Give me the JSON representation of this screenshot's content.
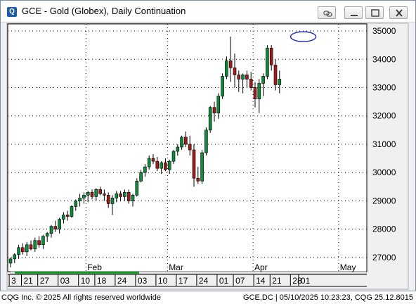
{
  "window": {
    "title": "GCE - Gold (Globex), Daily Continuation",
    "icon": "cqg-app-icon",
    "buttons": [
      "link-icon",
      "minimize-icon",
      "maximize-icon",
      "close-icon"
    ]
  },
  "footer": {
    "left": "CQG Inc. © 2025 All rights reserved worldwide",
    "right": "GCE,DC | 05/10/2025 10:23:23, CQG 25.12.8015"
  },
  "colors": {
    "up": "#0f8a3c",
    "down": "#a01c1c",
    "plot_bg": "#ffffff",
    "grid": "#000000",
    "bar_line": "#000000",
    "highlight_ellipse": "#2c34a8",
    "scroll_bar": "#1a9c2c"
  },
  "chart_data": {
    "type": "candlestick",
    "ylim": [
      26500,
      35250
    ],
    "ytick_values": [
      27000,
      28000,
      29000,
      30000,
      31000,
      32000,
      33000,
      34000,
      35000
    ],
    "ytick_labels": [
      "27000",
      "28000",
      "29000",
      "30000",
      "31000",
      "32000",
      "33000",
      "34000",
      "35000"
    ],
    "month_labels": [
      {
        "label": "Feb",
        "index": 19
      },
      {
        "label": "Mar",
        "index": 39
      },
      {
        "label": "Apr",
        "index": 60
      },
      {
        "label": "May",
        "index": 81
      }
    ],
    "date_labels": [
      {
        "label": "3",
        "index": 0
      },
      {
        "label": "21",
        "index": 3
      },
      {
        "label": "27",
        "index": 7
      },
      {
        "label": "03",
        "index": 12
      },
      {
        "label": "10",
        "index": 17
      },
      {
        "label": "18",
        "index": 21
      },
      {
        "label": "24",
        "index": 26
      },
      {
        "label": "03",
        "index": 31
      },
      {
        "label": "10",
        "index": 36
      },
      {
        "label": "17",
        "index": 41
      },
      {
        "label": "24",
        "index": 46
      },
      {
        "label": "01",
        "index": 51
      },
      {
        "label": "07",
        "index": 55
      },
      {
        "label": "14",
        "index": 60
      },
      {
        "label": "21",
        "index": 64
      },
      {
        "label": "28",
        "index": 69
      },
      {
        "label": "01",
        "index": 71
      }
    ],
    "highlight": {
      "index": 72,
      "value": 34800,
      "shape": "ellipse"
    },
    "candles": [
      [
        26800,
        27000,
        26650,
        26950
      ],
      [
        26950,
        27150,
        26800,
        27100
      ],
      [
        27100,
        27450,
        26950,
        27350
      ],
      [
        27350,
        27500,
        27100,
        27200
      ],
      [
        27200,
        27550,
        27050,
        27450
      ],
      [
        27450,
        27600,
        27250,
        27300
      ],
      [
        27300,
        27700,
        27200,
        27600
      ],
      [
        27600,
        27750,
        27350,
        27450
      ],
      [
        27450,
        27800,
        27300,
        27750
      ],
      [
        27750,
        27900,
        27550,
        27850
      ],
      [
        27850,
        28150,
        27700,
        28100
      ],
      [
        28100,
        28300,
        27900,
        28000
      ],
      [
        28000,
        28400,
        27850,
        28350
      ],
      [
        28350,
        28600,
        28200,
        28500
      ],
      [
        28500,
        28650,
        28300,
        28450
      ],
      [
        28450,
        28850,
        28400,
        28800
      ],
      [
        28800,
        29050,
        28650,
        29000
      ],
      [
        29000,
        29250,
        28800,
        29100
      ],
      [
        29100,
        29300,
        28900,
        29200
      ],
      [
        29200,
        29350,
        28950,
        29300
      ],
      [
        29300,
        29400,
        29050,
        29150
      ],
      [
        29150,
        29450,
        29000,
        29400
      ],
      [
        29400,
        29500,
        29200,
        29250
      ],
      [
        29250,
        29400,
        29000,
        29200
      ],
      [
        29200,
        29300,
        28750,
        28900
      ],
      [
        28900,
        29200,
        28500,
        29100
      ],
      [
        29100,
        29350,
        28950,
        29250
      ],
      [
        29250,
        29350,
        29000,
        29150
      ],
      [
        29150,
        29400,
        29000,
        29300
      ],
      [
        29300,
        29400,
        28900,
        29000
      ],
      [
        29000,
        29250,
        28800,
        29200
      ],
      [
        29200,
        29800,
        29150,
        29700
      ],
      [
        29700,
        30100,
        29650,
        30000
      ],
      [
        30000,
        30300,
        29850,
        30200
      ],
      [
        30200,
        30600,
        30100,
        30500
      ],
      [
        30500,
        30650,
        30300,
        30400
      ],
      [
        30400,
        30550,
        30050,
        30150
      ],
      [
        30150,
        30400,
        29950,
        30350
      ],
      [
        30350,
        30500,
        30050,
        30100
      ],
      [
        30100,
        30450,
        29950,
        30400
      ],
      [
        30400,
        30800,
        30300,
        30750
      ],
      [
        30750,
        31000,
        30600,
        30900
      ],
      [
        30900,
        31300,
        30800,
        31250
      ],
      [
        31250,
        31450,
        30900,
        31000
      ],
      [
        31000,
        31300,
        30600,
        30800
      ],
      [
        30800,
        31000,
        29500,
        29800
      ],
      [
        29800,
        30200,
        29600,
        29700
      ],
      [
        29700,
        30800,
        29600,
        30700
      ],
      [
        30700,
        31600,
        30600,
        31500
      ],
      [
        31500,
        32350,
        31400,
        32300
      ],
      [
        32300,
        32500,
        31800,
        32100
      ],
      [
        32100,
        32800,
        31900,
        32700
      ],
      [
        32700,
        33500,
        32600,
        33400
      ],
      [
        33400,
        34100,
        33300,
        33950
      ],
      [
        33950,
        34800,
        33200,
        33700
      ],
      [
        33700,
        34200,
        33000,
        33450
      ],
      [
        33450,
        33600,
        32850,
        33300
      ],
      [
        33300,
        33500,
        32800,
        33450
      ],
      [
        33450,
        33600,
        33000,
        33300
      ],
      [
        33300,
        33550,
        32900,
        33000
      ],
      [
        33000,
        33200,
        32300,
        32600
      ],
      [
        32600,
        33300,
        32100,
        33150
      ],
      [
        33150,
        33500,
        32700,
        33400
      ],
      [
        33400,
        34500,
        33300,
        34400
      ],
      [
        34400,
        34500,
        33600,
        33800
      ],
      [
        33800,
        34000,
        32900,
        33100
      ],
      [
        33100,
        33600,
        32800,
        33300
      ]
    ]
  }
}
